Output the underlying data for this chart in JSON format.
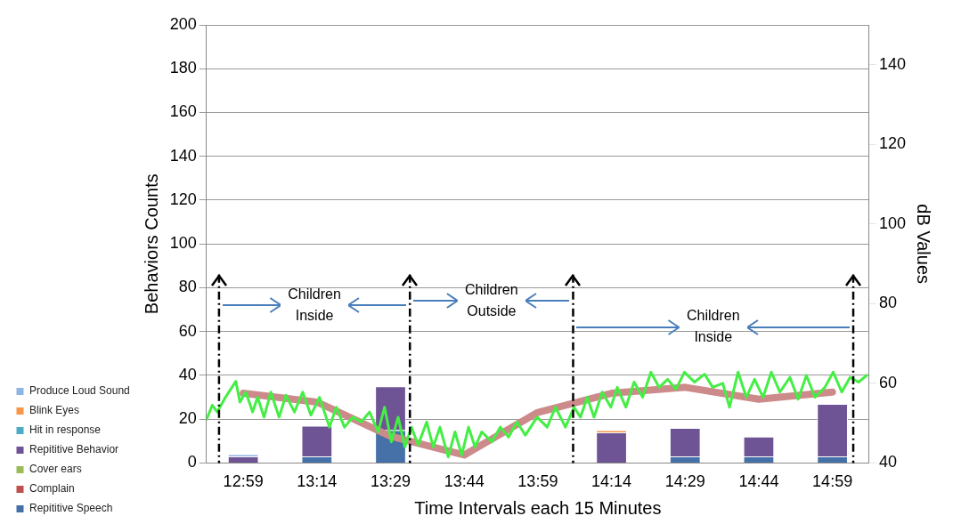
{
  "chart_data": {
    "type": "bar",
    "stacked": true,
    "xlabel": "Time Intervals each 15 Minutes",
    "ylabel": "Behaviors Counts",
    "y2label": "dB Values",
    "x": [
      12.9833,
      13.2333,
      13.4833,
      13.7333,
      13.9833,
      14.2333,
      14.4833,
      14.7333,
      14.9833
    ],
    "xlim": [
      12.8583,
      15.1083
    ],
    "xticks": [
      {
        "value": 12.9833,
        "label": "12:59"
      },
      {
        "value": 13.2333,
        "label": "13:14"
      },
      {
        "value": 13.4833,
        "label": "13:29"
      },
      {
        "value": 13.7333,
        "label": "13:44"
      },
      {
        "value": 13.9833,
        "label": "13:59"
      },
      {
        "value": 14.2333,
        "label": "14:14"
      },
      {
        "value": 14.4833,
        "label": "14:29"
      },
      {
        "value": 14.7333,
        "label": "14:44"
      },
      {
        "value": 14.9833,
        "label": "14:59"
      }
    ],
    "ylim": [
      0,
      200
    ],
    "yticks": [
      0,
      20,
      40,
      60,
      80,
      100,
      120,
      140,
      160,
      180,
      200
    ],
    "y2lim": [
      40,
      150
    ],
    "y2ticks": [
      40,
      60,
      80,
      100,
      120,
      140
    ],
    "grid": "y",
    "legend": "bottom left",
    "series": [
      {
        "name": "Repititive Speech",
        "color": "#4670a8",
        "values": [
          0,
          3,
          15,
          0,
          0,
          0,
          3,
          3,
          3
        ]
      },
      {
        "name": "Complain",
        "color": "#c0504d",
        "values": [
          0,
          0,
          0,
          0,
          0,
          0,
          0,
          0,
          0
        ]
      },
      {
        "name": "Cover ears",
        "color": "#9bbb59",
        "values": [
          0,
          0,
          0,
          0,
          0,
          0,
          0,
          0,
          0
        ]
      },
      {
        "name": "Repititive Behavior",
        "color": "#6e5494",
        "values": [
          3,
          14,
          20,
          0,
          0,
          14,
          13,
          9,
          24
        ]
      },
      {
        "name": "Hit in response",
        "color": "#4bacc6",
        "values": [
          0,
          0,
          0,
          0,
          0,
          0,
          0,
          0,
          0
        ]
      },
      {
        "name": "Blink Eyes",
        "color": "#f79646",
        "values": [
          0,
          0,
          0,
          0,
          0,
          1,
          0,
          0,
          0
        ]
      },
      {
        "name": "Produce Loud Sound",
        "color": "#8eb4e3",
        "values": [
          1,
          0,
          0,
          0,
          0,
          0,
          0,
          0,
          0
        ]
      },
      {
        "type": "line",
        "axis": "y2",
        "color": "#cd8a8a",
        "values": [
          57.5,
          55.3,
          46.7,
          42,
          52.7,
          57.5,
          59,
          56,
          57.8
        ]
      },
      {
        "type": "line",
        "axis": "y2",
        "color": "#44ee44",
        "x": [
          12.859,
          12.878,
          12.895,
          12.923,
          12.958,
          12.972,
          12.992,
          13.015,
          13.032,
          13.054,
          13.077,
          13.105,
          13.128,
          13.157,
          13.185,
          13.213,
          13.242,
          13.276,
          13.299,
          13.327,
          13.355,
          13.384,
          13.412,
          13.441,
          13.463,
          13.486,
          13.509,
          13.532,
          13.554,
          13.577,
          13.606,
          13.628,
          13.651,
          13.679,
          13.702,
          13.725,
          13.748,
          13.77,
          13.793,
          13.827,
          13.856,
          13.884,
          13.912,
          13.941,
          13.981,
          14.015,
          14.043,
          14.077,
          14.106,
          14.128,
          14.151,
          14.174,
          14.202,
          14.231,
          14.253,
          14.282,
          14.31,
          14.339,
          14.367,
          14.395,
          14.424,
          14.452,
          14.481,
          14.515,
          14.549,
          14.577,
          14.611,
          14.634,
          14.663,
          14.691,
          14.719,
          14.748,
          14.776,
          14.805,
          14.839,
          14.867,
          14.895,
          14.924,
          14.958,
          14.986,
          15.015,
          15.043,
          15.072,
          15.1
        ],
        "values": [
          51,
          54.5,
          52.8,
          56.5,
          60.5,
          55.3,
          57.8,
          52.8,
          56.5,
          51.5,
          57.8,
          51.5,
          57,
          52.8,
          57.8,
          52,
          56.5,
          49,
          54,
          49,
          51.5,
          50.3,
          52.8,
          47.8,
          54,
          45.3,
          51.5,
          44,
          49,
          44.5,
          50.3,
          44,
          49,
          41.5,
          47.8,
          42,
          49,
          44,
          47.8,
          45.3,
          49,
          46.5,
          50.3,
          47,
          51.5,
          49,
          54,
          49,
          54,
          51.5,
          56.5,
          51.5,
          57.8,
          54,
          59,
          54,
          60.3,
          56.5,
          62.8,
          59,
          61,
          58.5,
          62.8,
          60.3,
          62.3,
          59,
          60,
          54,
          62.8,
          56.5,
          61,
          56.5,
          62.8,
          57.8,
          61.5,
          56,
          62,
          56.5,
          59,
          62.8,
          57.8,
          61.5,
          60.3,
          62
        ]
      }
    ],
    "ref_lines": [
      {
        "axis": "x",
        "value": 12.901,
        "line_style": "dashed",
        "color": "#000000"
      },
      {
        "axis": "x",
        "value": 13.549,
        "line_style": "dashed",
        "color": "#000000"
      },
      {
        "axis": "x",
        "value": 14.103,
        "line_style": "dashed",
        "color": "#000000"
      },
      {
        "axis": "x",
        "value": 15.054,
        "line_style": "dashed",
        "color": "#000000"
      }
    ],
    "annotations": [
      {
        "text": "Children Inside",
        "x": 12.901,
        "y": 72
      },
      {
        "text": "Children Outside",
        "x": 13.549,
        "y": 74
      },
      {
        "text": "Children Inside",
        "x": 14.103,
        "y": 62
      }
    ]
  }
}
